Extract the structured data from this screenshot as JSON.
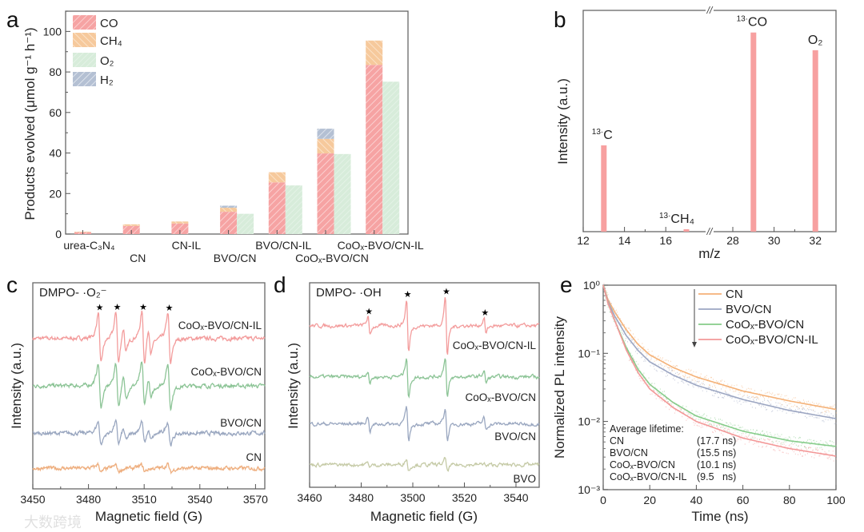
{
  "panels": {
    "a": "a",
    "b": "b",
    "c": "c",
    "d": "d",
    "e": "e"
  },
  "watermark": "大数跨境",
  "colors": {
    "CO": "#f6a3a3",
    "CH4": "#f3c08e",
    "O2": "#d6ecd9",
    "H2": "#b4c0d3"
  },
  "chart_data": [
    {
      "type": "bar",
      "stacked": true,
      "title": "",
      "xlabel": "",
      "ylabel": "Products evolved (μmol g⁻¹ h⁻¹)",
      "ylim": [
        0,
        110
      ],
      "yticks": [
        0,
        20,
        40,
        60,
        80,
        100
      ],
      "legend_position": "top-left",
      "categories": [
        "urea-C₃N₄",
        "CN",
        "CN-IL",
        "BVO/CN",
        "BVO/CN-IL",
        "CoOₓ-BVO/CN",
        "CoOₓ-BVO/CN-IL"
      ],
      "series": [
        {
          "name": "CO",
          "stack": "reduction",
          "values": [
            0.9,
            4.0,
            5.2,
            11.0,
            25.5,
            39.8,
            83.5
          ]
        },
        {
          "name": "CH₄",
          "stack": "reduction",
          "values": [
            0.3,
            0.8,
            1.0,
            2.0,
            5.0,
            7.2,
            12.0
          ]
        },
        {
          "name": "O₂",
          "stack": "oxidation",
          "values": [
            0,
            0,
            0,
            10.0,
            24.0,
            39.5,
            75.2
          ]
        },
        {
          "name": "H₂",
          "stack": "reduction",
          "values": [
            0,
            0,
            0,
            1.0,
            0,
            5.0,
            0
          ]
        }
      ]
    },
    {
      "type": "bar",
      "title": "",
      "xlabel": "m/z",
      "ylabel": "Intensity (a.u.)",
      "ylim": [
        0,
        1
      ],
      "x_segments": [
        [
          12,
          18.1
        ],
        [
          26.9,
          33
        ]
      ],
      "xticks": [
        12,
        14,
        16,
        28,
        30,
        32
      ],
      "axis_break": "//",
      "peaks": [
        {
          "x": 13,
          "value": 0.39,
          "prefix": "13·",
          "label": "C"
        },
        {
          "x": 17,
          "value": 0.01,
          "prefix": "13·",
          "label": "CH₄"
        },
        {
          "x": 29,
          "value": 0.9,
          "prefix": "13·",
          "label": "CO"
        },
        {
          "x": 32,
          "value": 0.82,
          "prefix": "",
          "label": "O₂"
        }
      ]
    },
    {
      "type": "line",
      "title": "DMPO- ·O₂⁻",
      "xlabel": "Magnetic field (G)",
      "ylabel": "Intensity (a.u.)",
      "xlim": [
        3450,
        3575
      ],
      "ylim": [
        0,
        10
      ],
      "xticks": [
        3450,
        3480,
        3510,
        3540,
        3570
      ],
      "star_positions": [
        3486,
        3495.5,
        3509.5,
        3523.5
      ],
      "series": [
        {
          "name": "CoOₓ-BVO/CN-IL",
          "color": "#f39c9c",
          "offset": 7.3,
          "amp": 1.25,
          "width": 1.3,
          "peaks": [
            [
              3486,
              1
            ],
            [
              3495.5,
              1
            ],
            [
              3499.5,
              0.5
            ],
            [
              3509.5,
              1
            ],
            [
              3513,
              0.5
            ],
            [
              3523.5,
              1
            ]
          ]
        },
        {
          "name": "CoOₓ-BVO/CN",
          "color": "#8cc496",
          "offset": 5.0,
          "amp": 1.05,
          "width": 1.4,
          "peaks": [
            [
              3486,
              1
            ],
            [
              3495.5,
              1
            ],
            [
              3499.5,
              0.5
            ],
            [
              3509.5,
              1
            ],
            [
              3513,
              0.5
            ],
            [
              3523.5,
              1
            ]
          ]
        },
        {
          "name": "BVO/CN",
          "color": "#9aa7c0",
          "offset": 2.7,
          "amp": 0.55,
          "width": 1.5,
          "peaks": [
            [
              3486,
              1
            ],
            [
              3495.5,
              1
            ],
            [
              3499.5,
              0.5
            ],
            [
              3509.5,
              1
            ],
            [
              3513,
              0.5
            ],
            [
              3523.5,
              1
            ]
          ]
        },
        {
          "name": "CN",
          "color": "#eeae7e",
          "offset": 1.0,
          "amp": 0.2,
          "width": 1.6,
          "peaks": [
            [
              3486,
              1
            ],
            [
              3495.5,
              0.8
            ],
            [
              3509.5,
              0.8
            ],
            [
              3523.5,
              1
            ]
          ]
        }
      ]
    },
    {
      "type": "line",
      "title": "DMPO- ·OH",
      "xlabel": "Magnetic field (G)",
      "ylabel": "Intensity (a.u.)",
      "xlim": [
        3460,
        3549
      ],
      "ylim": [
        0,
        10
      ],
      "xticks": [
        3460,
        3480,
        3500,
        3520,
        3540
      ],
      "star_positions": [
        3483,
        3498,
        3513,
        3528
      ],
      "series": [
        {
          "name": "CoOₓ-BVO/CN-IL",
          "color": "#f39c9c",
          "offset": 7.9,
          "amp": 1.3,
          "width": 0.7,
          "peaks": [
            [
              3483,
              0.35
            ],
            [
              3498,
              1
            ],
            [
              3513,
              1.1
            ],
            [
              3528,
              0.3
            ]
          ]
        },
        {
          "name": "CoOₓ-BVO/CN",
          "color": "#8cc496",
          "offset": 5.4,
          "amp": 1.0,
          "width": 0.75,
          "peaks": [
            [
              3483,
              0.3
            ],
            [
              3498,
              1
            ],
            [
              3513,
              1
            ],
            [
              3528,
              0.3
            ]
          ]
        },
        {
          "name": "BVO/CN",
          "color": "#9aa7c0",
          "offset": 3.1,
          "amp": 0.8,
          "width": 0.75,
          "peaks": [
            [
              3483,
              0.45
            ],
            [
              3498,
              1
            ],
            [
              3513,
              1
            ],
            [
              3528,
              0.35
            ]
          ]
        },
        {
          "name": "BVO",
          "color": "#c5caa6",
          "offset": 1.1,
          "amp": 0.3,
          "width": 0.8,
          "peaks": [
            [
              3483,
              0.3
            ],
            [
              3498,
              1
            ],
            [
              3513,
              1
            ],
            [
              3528,
              0.3
            ]
          ]
        }
      ]
    },
    {
      "type": "line",
      "title": "",
      "xlabel": "Time (ns)",
      "ylabel": "Normalized PL intensity",
      "xlim": [
        0,
        100
      ],
      "yscale": "log",
      "ylim": [
        0.001,
        1
      ],
      "xticks": [
        0,
        20,
        40,
        60,
        80,
        100
      ],
      "yticks": [
        1,
        0.1,
        0.01,
        0.001
      ],
      "ytick_labels": [
        "10⁰",
        "10⁻¹",
        "10⁻²",
        "10⁻³"
      ],
      "legend_position": "top-right",
      "t": [
        0,
        2,
        5,
        10,
        15,
        20,
        30,
        40,
        60,
        80,
        100
      ],
      "series": [
        {
          "name": "CN",
          "color": "#f4b177",
          "values": [
            1,
            0.62,
            0.4,
            0.22,
            0.135,
            0.095,
            0.062,
            0.045,
            0.028,
            0.02,
            0.015
          ]
        },
        {
          "name": "BVO/CN",
          "color": "#9ca6c2",
          "values": [
            1,
            0.58,
            0.35,
            0.18,
            0.11,
            0.075,
            0.048,
            0.034,
            0.021,
            0.0145,
            0.011
          ]
        },
        {
          "name": "CoOₓ-BVO/CN",
          "color": "#86cc8a",
          "values": [
            1,
            0.55,
            0.3,
            0.12,
            0.058,
            0.035,
            0.019,
            0.012,
            0.0072,
            0.0052,
            0.0043
          ]
        },
        {
          "name": "CoOₓ-BVO/CN-IL",
          "color": "#f39898",
          "values": [
            1,
            0.55,
            0.3,
            0.11,
            0.052,
            0.03,
            0.016,
            0.01,
            0.0057,
            0.004,
            0.0031
          ]
        }
      ],
      "lifetime_title": "Average lifetime:",
      "lifetimes": [
        {
          "name": "CN",
          "value": "(17.7 ns)"
        },
        {
          "name": "BVO/CN",
          "value": "(15.5 ns)"
        },
        {
          "name": "CoOₓ-BVO/CN",
          "value": "(10.1 ns)"
        },
        {
          "name": "CoOₓ-BVO/CN-IL",
          "value": "(9.5   ns)"
        }
      ]
    }
  ]
}
